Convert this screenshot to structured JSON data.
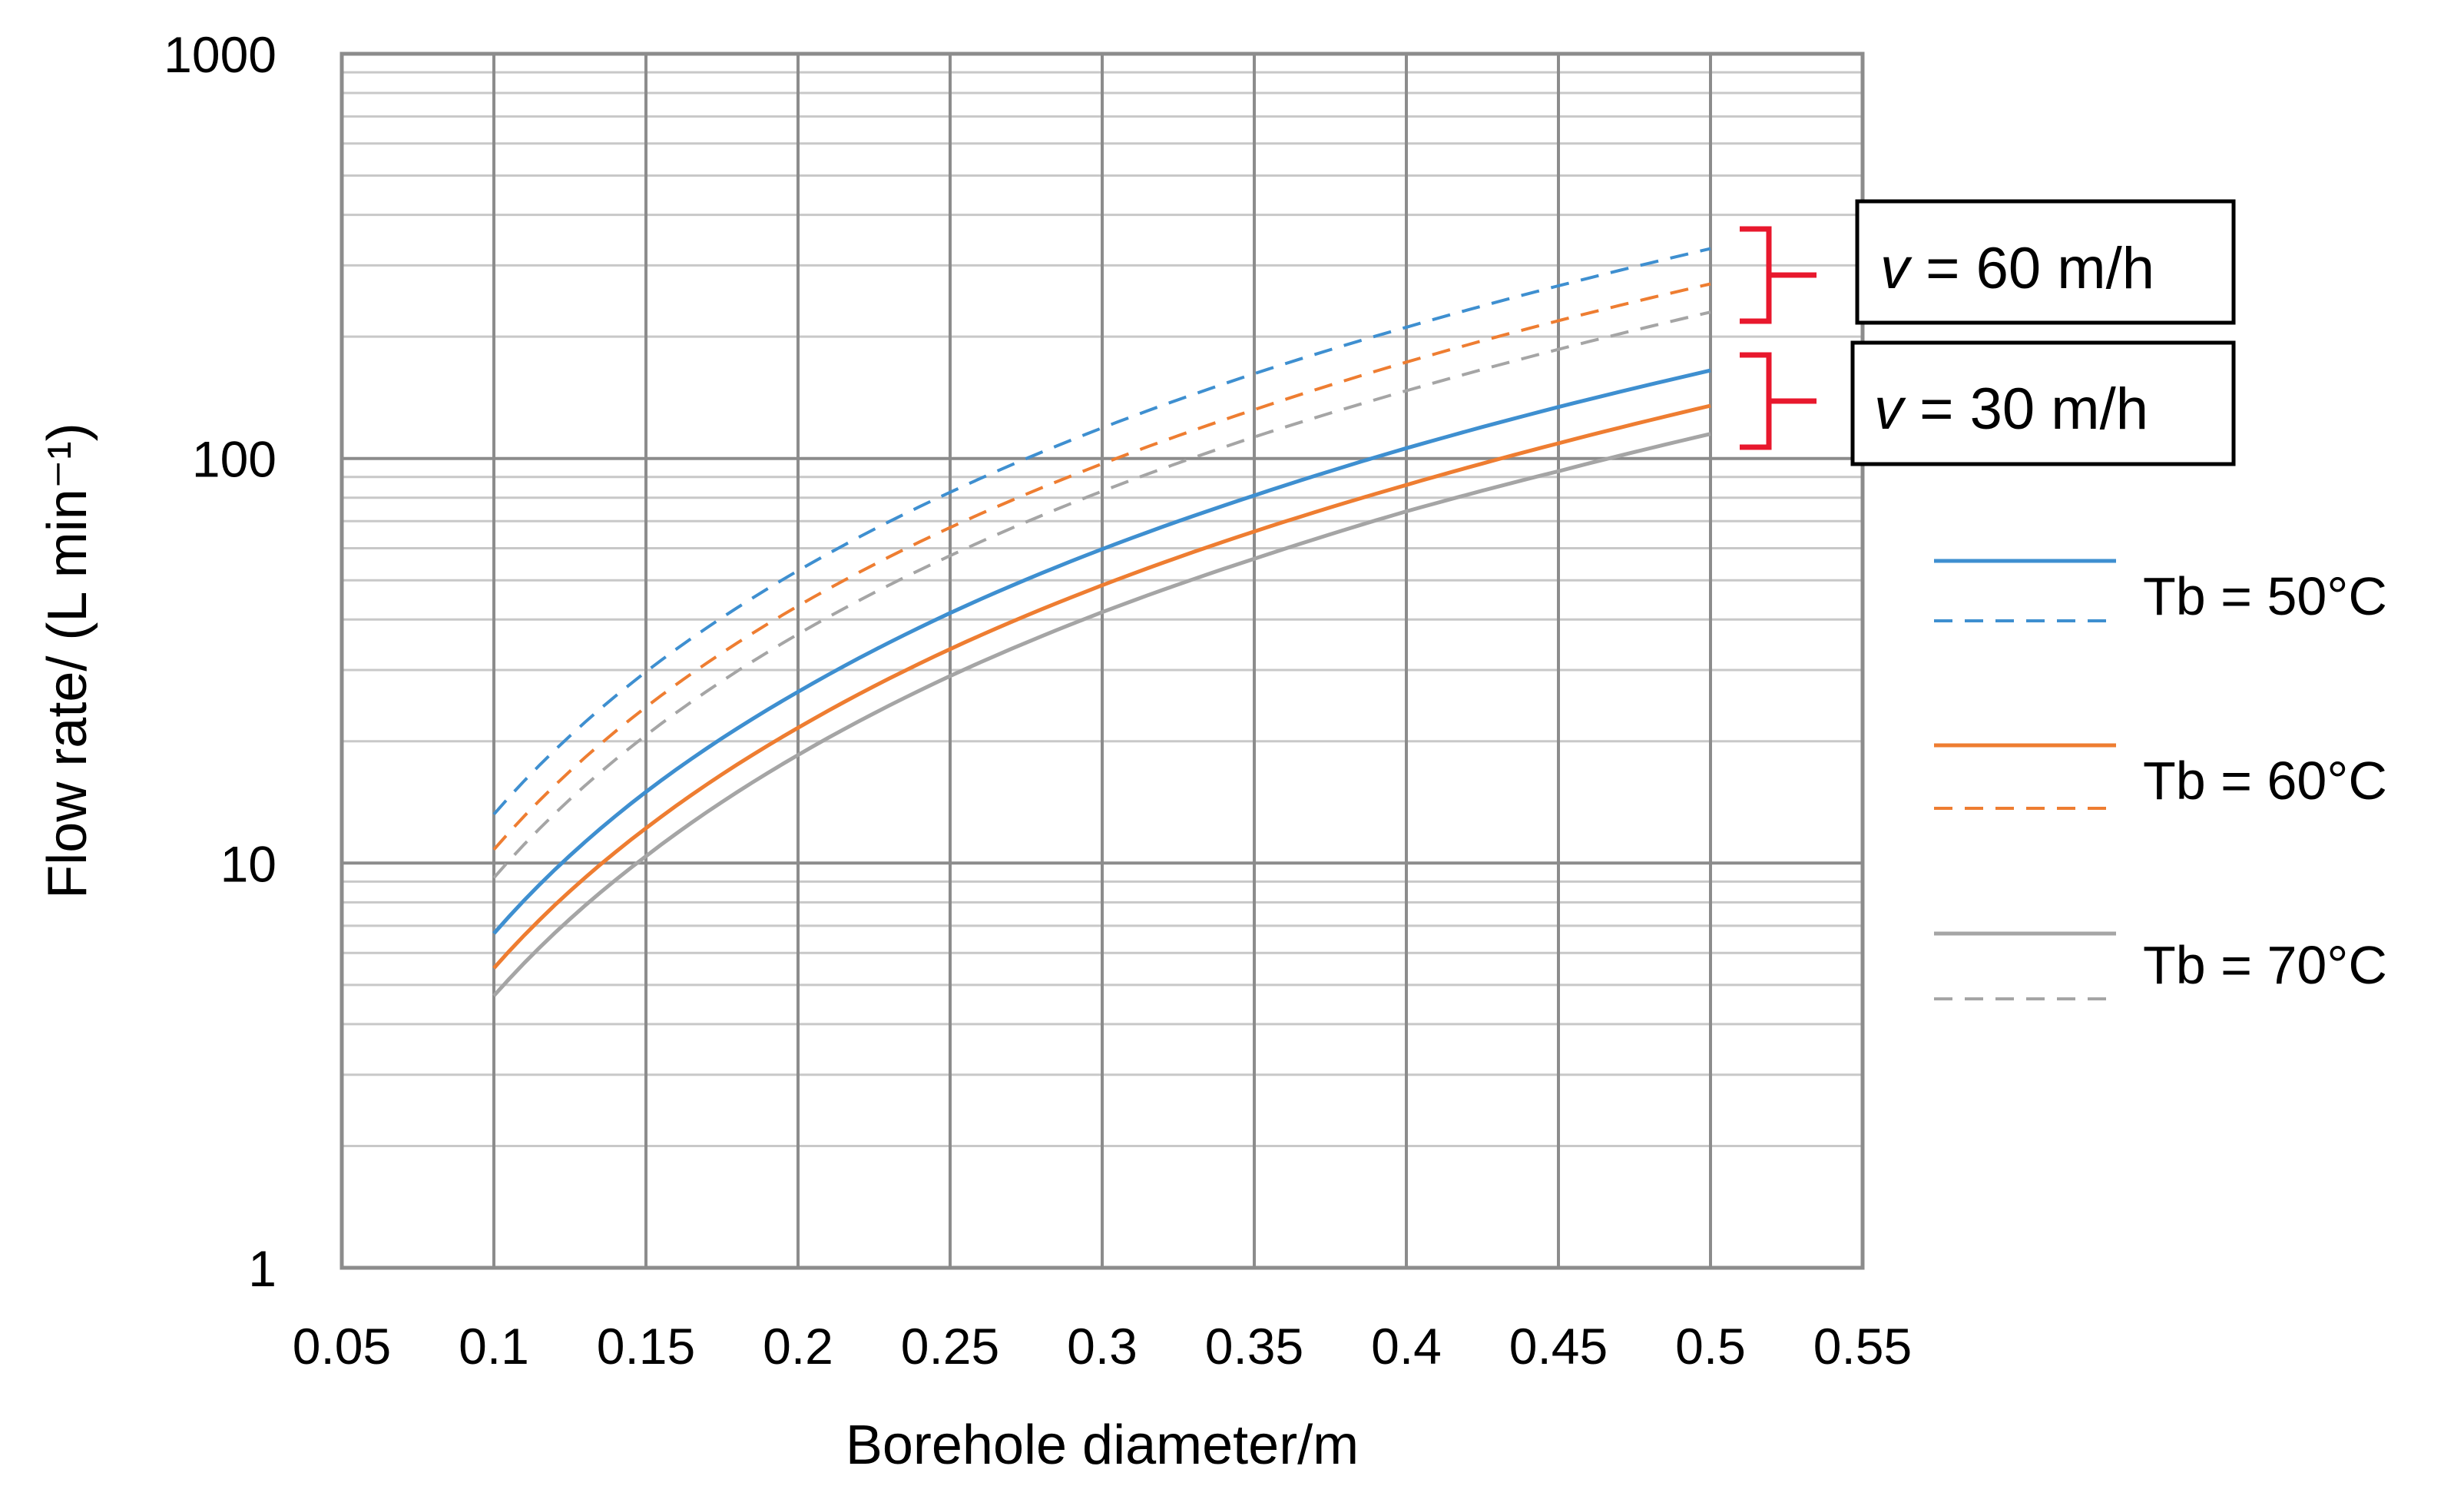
{
  "chart_data": {
    "type": "line",
    "xlabel": "Borehole diameter/m",
    "ylabel": "Flow rate/ (L min⁻¹)",
    "xlim": [
      0.05,
      0.55
    ],
    "ylim": [
      1,
      1000
    ],
    "yscale": "log",
    "grid": true,
    "x_ticks": [
      "0.05",
      "0.1",
      "0.15",
      "0.2",
      "0.25",
      "0.3",
      "0.35",
      "0.4",
      "0.45",
      "0.5",
      "0.55"
    ],
    "y_ticks": [
      "1",
      "10",
      "100",
      "1000"
    ],
    "x": [
      0.1,
      0.15,
      0.2,
      0.25,
      0.3,
      0.35,
      0.4,
      0.45,
      0.5
    ],
    "series": [
      {
        "group": "v = 30 m/h",
        "legend": "Tb = 50°C",
        "style": "solid",
        "color": "#3e8fd0",
        "values": [
          6.7,
          15,
          26.5,
          41.5,
          59.7,
          81,
          106,
          134,
          165
        ]
      },
      {
        "group": "v = 30 m/h",
        "legend": "Tb = 60°C",
        "style": "solid",
        "color": "#ee7d31",
        "values": [
          5.5,
          12.2,
          21.6,
          33.8,
          48.6,
          66,
          86,
          109,
          135
        ]
      },
      {
        "group": "v = 30 m/h",
        "legend": "Tb = 70°C",
        "style": "solid",
        "color": "#a5a5a5",
        "values": [
          4.7,
          10.4,
          18.5,
          29,
          41.7,
          56.5,
          74,
          93,
          115
        ]
      },
      {
        "group": "v = 60 m/h",
        "legend": "Tb = 50°C",
        "style": "dashed",
        "color": "#3e8fd0",
        "values": [
          13.2,
          29.7,
          52.8,
          82.5,
          119,
          162,
          211,
          267,
          330
        ]
      },
      {
        "group": "v = 60 m/h",
        "legend": "Tb = 60°C",
        "style": "dashed",
        "color": "#ee7d31",
        "values": [
          10.8,
          24.3,
          43.2,
          67.5,
          97,
          132,
          173,
          219,
          270
        ]
      },
      {
        "group": "v = 60 m/h",
        "legend": "Tb = 70°C",
        "style": "dashed",
        "color": "#a5a5a5",
        "values": [
          9.2,
          20.7,
          36.8,
          57.5,
          83,
          113,
          147,
          186,
          230
        ]
      }
    ],
    "legend": {
      "placement": "right",
      "entries": [
        "Tb = 50°C",
        "Tb = 60°C",
        "Tb = 70°C"
      ],
      "colors": [
        "#3e8fd0",
        "#ee7d31",
        "#a5a5a5"
      ]
    },
    "annotations": [
      {
        "prefix": "v",
        "text": " = 60 m/h",
        "bracket_color": "#e8182d"
      },
      {
        "prefix": "v",
        "text": " = 30 m/h",
        "bracket_color": "#e8182d"
      }
    ]
  }
}
